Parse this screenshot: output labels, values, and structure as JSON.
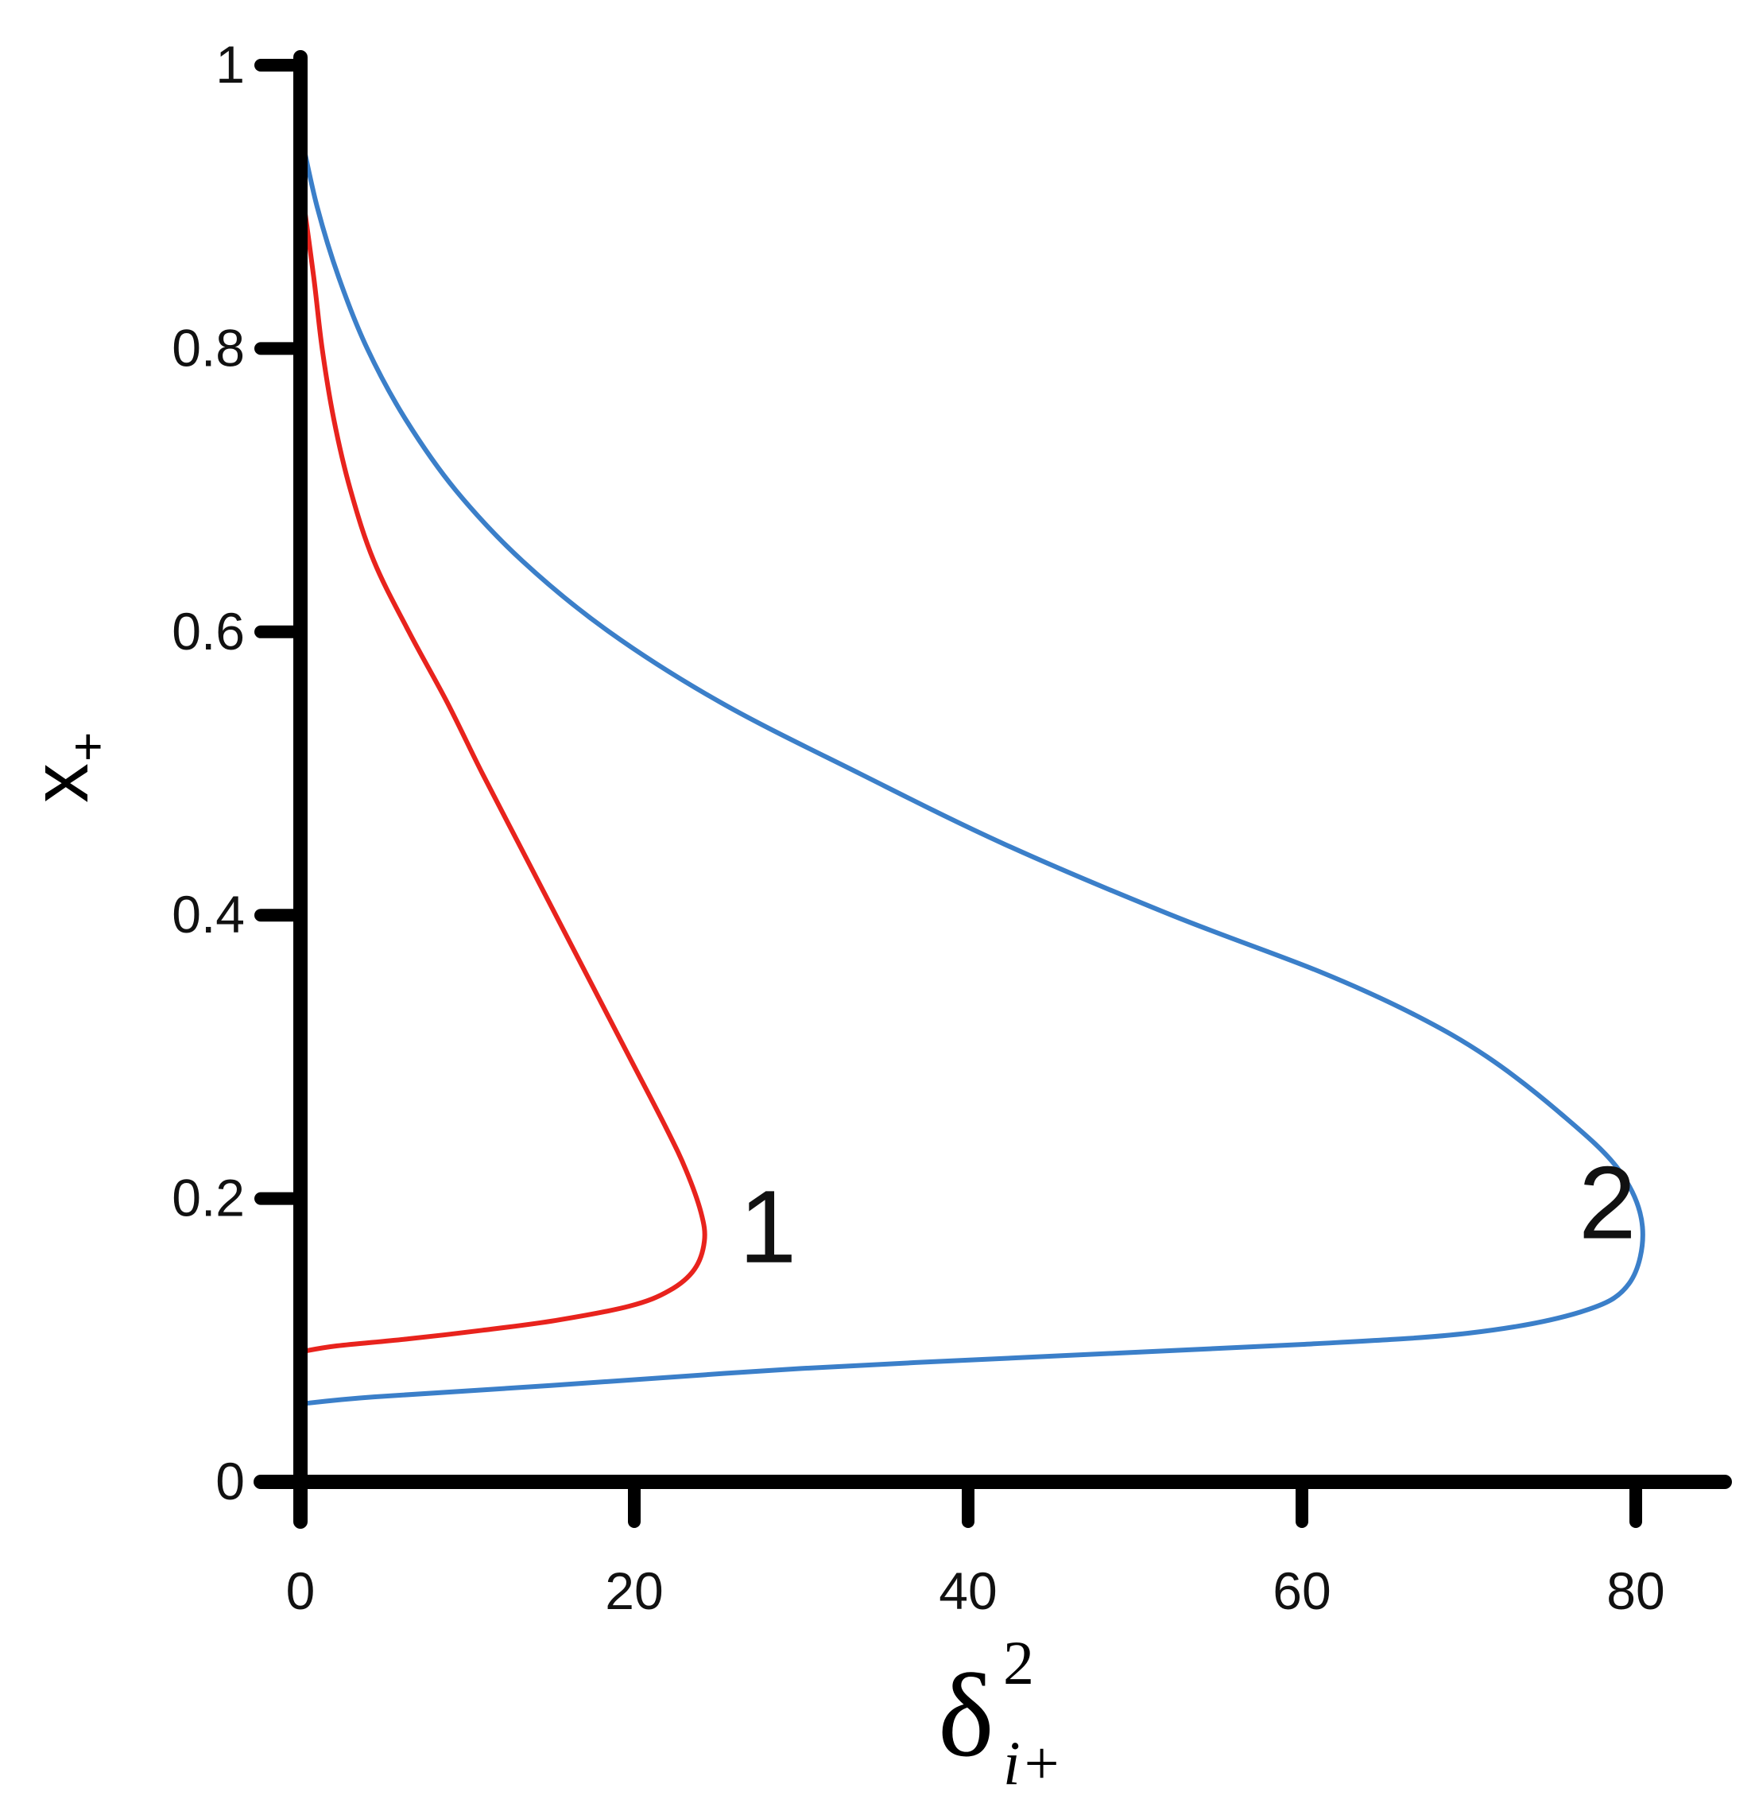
{
  "chart_data": {
    "type": "line",
    "title": "",
    "ylabel": {
      "main": "x",
      "sub": "+"
    },
    "xlabel": {
      "main": "δ",
      "sup": "2",
      "sub": "i+"
    },
    "xlim": [
      0,
      85
    ],
    "ylim": [
      0,
      1
    ],
    "x_ticks": [
      "0",
      "20",
      "40",
      "60",
      "80"
    ],
    "y_ticks": [
      "0",
      "0.2",
      "0.4",
      "0.6",
      "0.8",
      "1"
    ],
    "grid": false,
    "legend": "none",
    "series": [
      {
        "label": "1",
        "color": "#e8231d",
        "x": [
          0.1,
          0.8,
          1.3,
          2.0,
          3.0,
          4.4,
          6.5,
          8.8,
          10.9,
          13.1,
          15.3,
          17.5,
          19.7,
          21.9,
          23.1,
          24.0,
          24.2,
          23.6,
          22.1,
          19.7,
          15.3,
          10.9,
          6.5,
          2.2,
          0.1
        ],
        "y": [
          0.911,
          0.85,
          0.8,
          0.75,
          0.7,
          0.65,
          0.6,
          0.55,
          0.5,
          0.45,
          0.4,
          0.35,
          0.3,
          0.25,
          0.22,
          0.19,
          0.17,
          0.15,
          0.135,
          0.124,
          0.114,
          0.107,
          0.101,
          0.096,
          0.092
        ]
      },
      {
        "label": "2",
        "color": "#3b7fc9",
        "x": [
          0.0,
          1.0,
          2.3,
          4.0,
          6.3,
          9.3,
          13.3,
          18.5,
          25.2,
          33.5,
          42.2,
          52.2,
          61.1,
          66.7,
          71.1,
          75.5,
          79.0,
          80.4,
          79.6,
          76.7,
          70.0,
          60.0,
          45.5,
          30.0,
          15.0,
          4.4,
          0.0
        ],
        "y": [
          0.953,
          0.9,
          0.85,
          0.8,
          0.75,
          0.7,
          0.65,
          0.6,
          0.55,
          0.5,
          0.45,
          0.4,
          0.36,
          0.33,
          0.3,
          0.26,
          0.22,
          0.18,
          0.14,
          0.12,
          0.105,
          0.097,
          0.089,
          0.08,
          0.068,
          0.06,
          0.055
        ]
      }
    ]
  }
}
